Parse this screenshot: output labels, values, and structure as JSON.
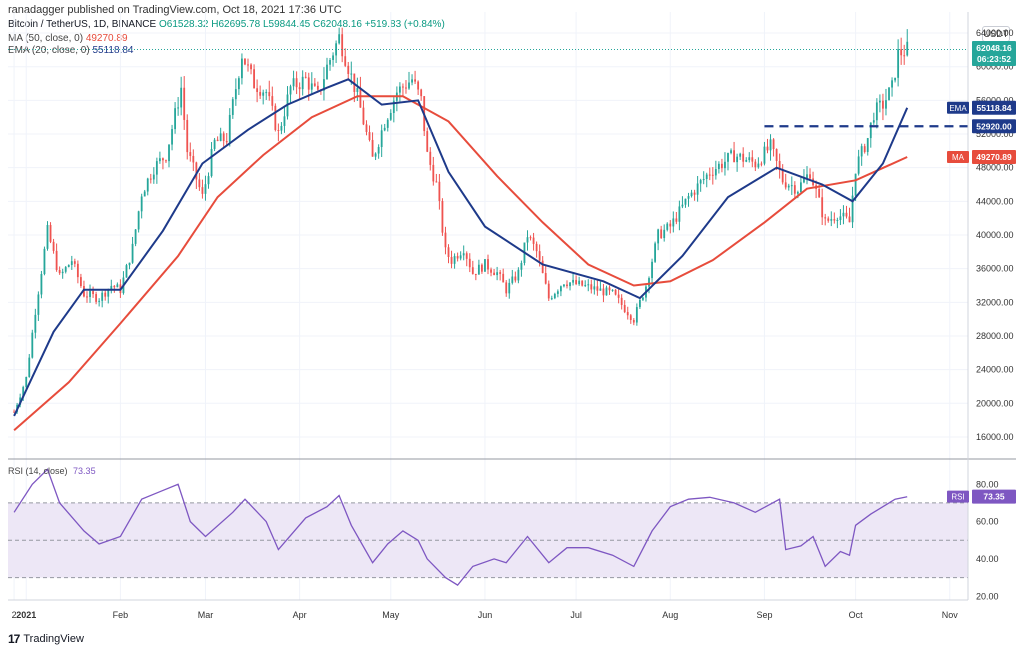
{
  "header": {
    "publisher": "ranadagger published on TradingView.com, Oct 18, 2021 17:36 UTC",
    "symbol": "Bitcoin / TetherUS, 1D, BINANCE",
    "ohlc": "O61528.32  H62695.78  L59844.45  C62048.16  +519.83 (+0.84%)",
    "ma_label": "MA (50, close, 0)",
    "ma_value": "49270.89",
    "ema_label": "EMA (20, close, 0)",
    "ema_value": "55118.84",
    "currency": "USDT"
  },
  "price_badges": {
    "last_price": "62048.16",
    "countdown": "06:23:52",
    "ema_tag": "EMA",
    "ema_price": "55118.84",
    "support_price": "52920.00",
    "ma_tag": "MA",
    "ma_price": "49270.89"
  },
  "rsi_header": {
    "label": "RSI (14, close)",
    "value": "73.35"
  },
  "rsi_badge": {
    "tag": "RSI",
    "value": "73.35"
  },
  "footer": {
    "brand": "TradingView",
    "logo": "17"
  },
  "colors": {
    "up": "#26a69a",
    "down": "#ef5350",
    "ma": "#e74c3c",
    "ema": "#1e3a8a",
    "rsi": "#7e57c2",
    "rsi_band": "#ede7f6",
    "support": "#1e3a8a"
  },
  "chart_data": [
    {
      "type": "candlestick",
      "title": "Bitcoin / TetherUS, 1D, BINANCE",
      "y_ticks": [
        16000,
        20000,
        24000,
        28000,
        32000,
        36000,
        40000,
        44000,
        48000,
        52000,
        56000,
        60000,
        64000
      ],
      "ylim": [
        13500,
        66500
      ],
      "x_ticks": [
        "2",
        "2021",
        "Feb",
        "Mar",
        "Apr",
        "May",
        "Jun",
        "Jul",
        "Aug",
        "Sep",
        "Oct",
        "Nov"
      ],
      "close_path": [
        [
          "2020-12-28",
          19000
        ],
        [
          "2021-01-01",
          23000
        ],
        [
          "2021-01-04",
          31000
        ],
        [
          "2021-01-08",
          40500
        ],
        [
          "2021-01-12",
          35000
        ],
        [
          "2021-01-16",
          37000
        ],
        [
          "2021-01-20",
          33000
        ],
        [
          "2021-01-25",
          32500
        ],
        [
          "2021-01-29",
          34000
        ],
        [
          "2021-02-01",
          33500
        ],
        [
          "2021-02-05",
          38500
        ],
        [
          "2021-02-08",
          45000
        ],
        [
          "2021-02-12",
          48000
        ],
        [
          "2021-02-16",
          49500
        ],
        [
          "2021-02-21",
          57500
        ],
        [
          "2021-02-23",
          50000
        ],
        [
          "2021-02-28",
          44500
        ],
        [
          "2021-03-04",
          51000
        ],
        [
          "2021-03-08",
          51500
        ],
        [
          "2021-03-13",
          61500
        ],
        [
          "2021-03-17",
          58000
        ],
        [
          "2021-03-21",
          57000
        ],
        [
          "2021-03-25",
          52000
        ],
        [
          "2021-03-29",
          57500
        ],
        [
          "2021-04-03",
          58500
        ],
        [
          "2021-04-07",
          56500
        ],
        [
          "2021-04-10",
          60000
        ],
        [
          "2021-04-14",
          63500
        ],
        [
          "2021-04-17",
          60000
        ],
        [
          "2021-04-20",
          56500
        ],
        [
          "2021-04-25",
          49000
        ],
        [
          "2021-04-29",
          53500
        ],
        [
          "2021-05-03",
          57000
        ],
        [
          "2021-05-08",
          58500
        ],
        [
          "2021-05-11",
          56000
        ],
        [
          "2021-05-13",
          49500
        ],
        [
          "2021-05-16",
          46000
        ],
        [
          "2021-05-19",
          38000
        ],
        [
          "2021-05-21",
          37000
        ],
        [
          "2021-05-25",
          38500
        ],
        [
          "2021-05-28",
          35500
        ],
        [
          "2021-06-01",
          36500
        ],
        [
          "2021-06-05",
          35500
        ],
        [
          "2021-06-08",
          33500
        ],
        [
          "2021-06-12",
          35500
        ],
        [
          "2021-06-15",
          40000
        ],
        [
          "2021-06-18",
          38000
        ],
        [
          "2021-06-22",
          32500
        ],
        [
          "2021-06-27",
          34500
        ],
        [
          "2021-07-03",
          34000
        ],
        [
          "2021-07-08",
          33500
        ],
        [
          "2021-07-13",
          33000
        ],
        [
          "2021-07-20",
          30000
        ],
        [
          "2021-07-24",
          34000
        ],
        [
          "2021-07-28",
          40000
        ],
        [
          "2021-08-01",
          41000
        ],
        [
          "2021-08-07",
          44500
        ],
        [
          "2021-08-14",
          47500
        ],
        [
          "2021-08-22",
          49500
        ],
        [
          "2021-08-29",
          48500
        ],
        [
          "2021-09-03",
          50500
        ],
        [
          "2021-09-07",
          46500
        ],
        [
          "2021-09-12",
          45500
        ],
        [
          "2021-09-16",
          47500
        ],
        [
          "2021-09-21",
          41500
        ],
        [
          "2021-09-25",
          42500
        ],
        [
          "2021-09-29",
          41500
        ],
        [
          "2021-10-01",
          48000
        ],
        [
          "2021-10-05",
          51500
        ],
        [
          "2021-10-07",
          54500
        ],
        [
          "2021-10-10",
          55500
        ],
        [
          "2021-10-13",
          57500
        ],
        [
          "2021-10-15",
          61500
        ],
        [
          "2021-10-18",
          62048
        ]
      ],
      "ma50_path": [
        [
          "2020-12-28",
          16800
        ],
        [
          "2021-01-15",
          22500
        ],
        [
          "2021-02-01",
          29500
        ],
        [
          "2021-02-20",
          37500
        ],
        [
          "2021-03-05",
          44500
        ],
        [
          "2021-03-20",
          49500
        ],
        [
          "2021-04-05",
          54000
        ],
        [
          "2021-04-20",
          56500
        ],
        [
          "2021-05-05",
          56500
        ],
        [
          "2021-05-20",
          53500
        ],
        [
          "2021-06-05",
          47000
        ],
        [
          "2021-06-20",
          41500
        ],
        [
          "2021-07-05",
          36500
        ],
        [
          "2021-07-20",
          34000
        ],
        [
          "2021-08-01",
          34500
        ],
        [
          "2021-08-15",
          37000
        ],
        [
          "2021-09-01",
          41500
        ],
        [
          "2021-09-15",
          45500
        ],
        [
          "2021-10-01",
          46500
        ],
        [
          "2021-10-18",
          49271
        ]
      ],
      "ema20_path": [
        [
          "2020-12-28",
          18500
        ],
        [
          "2021-01-10",
          28500
        ],
        [
          "2021-01-20",
          33500
        ],
        [
          "2021-02-01",
          33500
        ],
        [
          "2021-02-15",
          40500
        ],
        [
          "2021-02-28",
          48500
        ],
        [
          "2021-03-15",
          52500
        ],
        [
          "2021-03-28",
          55500
        ],
        [
          "2021-04-10",
          57500
        ],
        [
          "2021-04-17",
          58500
        ],
        [
          "2021-04-28",
          55500
        ],
        [
          "2021-05-10",
          56000
        ],
        [
          "2021-05-20",
          47500
        ],
        [
          "2021-06-01",
          41000
        ],
        [
          "2021-06-20",
          36500
        ],
        [
          "2021-07-10",
          34500
        ],
        [
          "2021-07-22",
          32500
        ],
        [
          "2021-08-05",
          37500
        ],
        [
          "2021-08-20",
          44500
        ],
        [
          "2021-09-05",
          48000
        ],
        [
          "2021-09-20",
          46000
        ],
        [
          "2021-09-30",
          44000
        ],
        [
          "2021-10-10",
          48500
        ],
        [
          "2021-10-18",
          55119
        ]
      ],
      "support_level": 52920,
      "support_range": [
        "2021-09-01",
        "2021-10-18"
      ]
    },
    {
      "type": "line",
      "title": "RSI (14, close)",
      "y_ticks": [
        20,
        40,
        60,
        80
      ],
      "ylim": [
        18,
        93
      ],
      "band": [
        30,
        70
      ],
      "midline": 50,
      "series": [
        {
          "name": "RSI",
          "points": [
            [
              "2020-12-28",
              65
            ],
            [
              "2021-01-03",
              80
            ],
            [
              "2021-01-08",
              88
            ],
            [
              "2021-01-12",
              70
            ],
            [
              "2021-01-20",
              55
            ],
            [
              "2021-01-25",
              48
            ],
            [
              "2021-02-01",
              52
            ],
            [
              "2021-02-08",
              72
            ],
            [
              "2021-02-14",
              76
            ],
            [
              "2021-02-20",
              80
            ],
            [
              "2021-02-24",
              60
            ],
            [
              "2021-03-01",
              52
            ],
            [
              "2021-03-10",
              65
            ],
            [
              "2021-03-14",
              72
            ],
            [
              "2021-03-21",
              60
            ],
            [
              "2021-03-25",
              45
            ],
            [
              "2021-04-03",
              62
            ],
            [
              "2021-04-10",
              68
            ],
            [
              "2021-04-14",
              74
            ],
            [
              "2021-04-18",
              58
            ],
            [
              "2021-04-25",
              38
            ],
            [
              "2021-04-30",
              48
            ],
            [
              "2021-05-05",
              55
            ],
            [
              "2021-05-10",
              50
            ],
            [
              "2021-05-13",
              40
            ],
            [
              "2021-05-19",
              30
            ],
            [
              "2021-05-23",
              26
            ],
            [
              "2021-05-28",
              36
            ],
            [
              "2021-06-04",
              40
            ],
            [
              "2021-06-08",
              38
            ],
            [
              "2021-06-15",
              52
            ],
            [
              "2021-06-22",
              38
            ],
            [
              "2021-06-28",
              46
            ],
            [
              "2021-07-05",
              46
            ],
            [
              "2021-07-13",
              42
            ],
            [
              "2021-07-20",
              36
            ],
            [
              "2021-07-26",
              55
            ],
            [
              "2021-08-01",
              68
            ],
            [
              "2021-08-07",
              72
            ],
            [
              "2021-08-14",
              73
            ],
            [
              "2021-08-22",
              70
            ],
            [
              "2021-08-29",
              65
            ],
            [
              "2021-09-06",
              72
            ],
            [
              "2021-09-08",
              45
            ],
            [
              "2021-09-13",
              47
            ],
            [
              "2021-09-17",
              52
            ],
            [
              "2021-09-21",
              36
            ],
            [
              "2021-09-26",
              44
            ],
            [
              "2021-09-29",
              42
            ],
            [
              "2021-10-01",
              58
            ],
            [
              "2021-10-06",
              64
            ],
            [
              "2021-10-10",
              68
            ],
            [
              "2021-10-14",
              72
            ],
            [
              "2021-10-18",
              73.35
            ]
          ]
        }
      ]
    }
  ]
}
